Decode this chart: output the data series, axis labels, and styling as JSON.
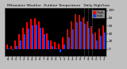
{
  "title": "Milwaukee Weather  Outdoor Temperature   Daily High/Low",
  "title_fontsize": 3.2,
  "background_color": "#c0c0c0",
  "plot_bg_color": "#000000",
  "bar_width": 0.4,
  "ylim": [
    -20,
    105
  ],
  "yticks": [
    0,
    20,
    40,
    60,
    80,
    100
  ],
  "ytick_fontsize": 3.0,
  "xtick_fontsize": 2.8,
  "legend_fontsize": 3.0,
  "dotted_lines": [
    19,
    20,
    21
  ],
  "n_bars": 25,
  "highs": [
    12,
    8,
    22,
    38,
    55,
    68,
    78,
    80,
    72,
    55,
    40,
    22,
    18,
    14,
    30,
    50,
    72,
    90,
    88,
    82,
    70,
    58,
    42,
    52,
    60
  ],
  "lows": [
    2,
    -2,
    8,
    22,
    38,
    52,
    60,
    62,
    54,
    38,
    22,
    8,
    2,
    -10,
    12,
    30,
    50,
    68,
    70,
    64,
    54,
    38,
    22,
    35,
    42
  ],
  "high_color": "#ff0000",
  "low_color": "#2244cc",
  "xtick_labels": [
    "8",
    "9",
    "0",
    "1",
    "2",
    "3",
    "4",
    "5",
    "6",
    "7",
    "8",
    "9",
    "0",
    "1",
    "2",
    "3",
    "4",
    "5",
    "6",
    "7",
    "8",
    "9",
    "0",
    "1",
    "2"
  ]
}
